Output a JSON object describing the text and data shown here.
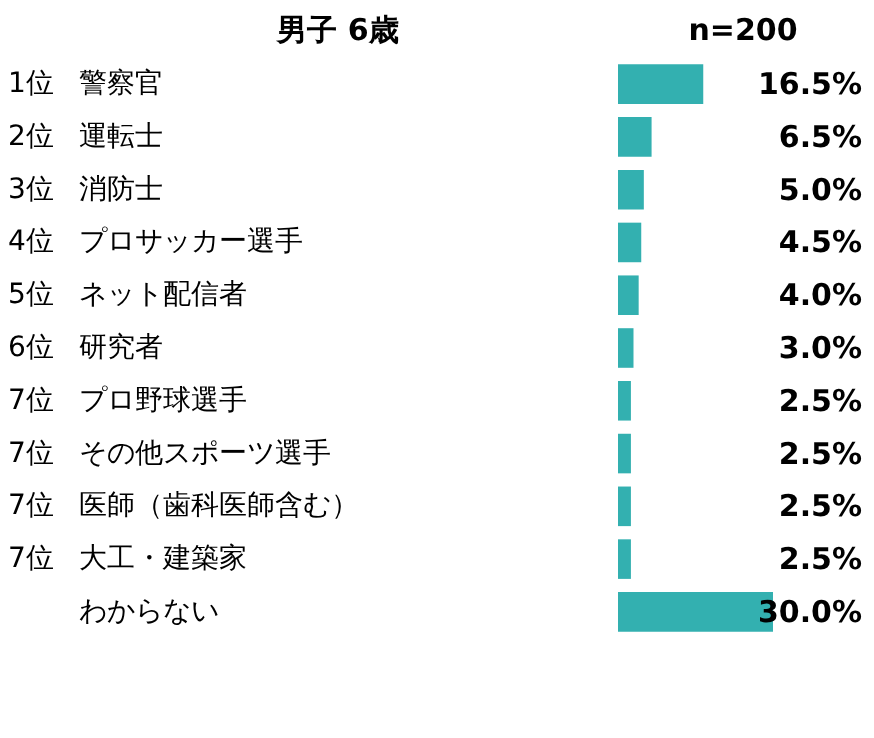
{
  "chart_data": {
    "type": "bar",
    "orientation": "horizontal",
    "title": "男子 6歳",
    "subtitle": "n=200",
    "categories": [
      "警察官",
      "運転士",
      "消防士",
      "プロサッカー選手",
      "ネット配信者",
      "研究者",
      "プロ野球選手",
      "その他スポーツ選手",
      "医師（歯科医師含む）",
      "大工・建築家",
      "わからない"
    ],
    "values": [
      16.5,
      6.5,
      5.0,
      4.5,
      4.0,
      3.0,
      2.5,
      2.5,
      2.5,
      2.5,
      30.0
    ],
    "value_labels": [
      "16.5%",
      "6.5%",
      "5.0%",
      "4.5%",
      "4.0%",
      "3.0%",
      "2.5%",
      "2.5%",
      "2.5%",
      "2.5%",
      "30.0%"
    ],
    "color": "#33b0b0",
    "annotations": [
      "1位",
      "2位",
      "3位",
      "4位",
      "5位",
      "6位",
      "7位",
      "7位",
      "7位",
      "7位"
    ]
  }
}
